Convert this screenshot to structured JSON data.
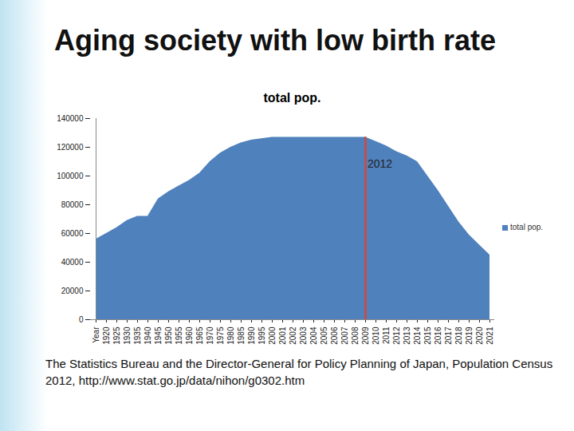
{
  "chart_data": {
    "type": "area",
    "title": "Aging society with low birth rate",
    "subtitle": "total pop.",
    "caption": "The Statistics Bureau and the Director-General for Policy Planning of Japan, Population Census 2012, http://www.stat.go.jp/data/nihon/g0302.htm",
    "categories": [
      "Year",
      "1920",
      "1925",
      "1930",
      "1935",
      "1940",
      "1945",
      "1950",
      "1955",
      "1960",
      "1965",
      "1970",
      "1975",
      "1980",
      "1985",
      "1990",
      "1995",
      "2000",
      "2001",
      "2002",
      "2003",
      "2004",
      "2005",
      "2006",
      "2007",
      "2008",
      "2009",
      "2010",
      "2011",
      "2012",
      "2013",
      "2014",
      "2015",
      "2016",
      "2017",
      "2018",
      "2019",
      "2020",
      "2021"
    ],
    "series": [
      {
        "name": "total pop.",
        "color": "#4f81bd",
        "values": [
          56000,
          60000,
          64000,
          69000,
          72000,
          72000,
          84000,
          89000,
          93000,
          97000,
          102000,
          110000,
          116000,
          120000,
          123000,
          125000,
          126000,
          127000,
          127000,
          127000,
          127000,
          127000,
          127000,
          127000,
          127000,
          127000,
          127000,
          124000,
          121000,
          117000,
          114000,
          110000,
          100000,
          90000,
          79000,
          68000,
          59000,
          52000,
          45000
        ]
      }
    ],
    "ylim": [
      0,
      140000
    ],
    "yticks": [
      0,
      20000,
      40000,
      60000,
      80000,
      100000,
      120000,
      140000
    ],
    "grid": false,
    "legend": "right",
    "annotations": [
      {
        "text": "2012",
        "x": "2009",
        "color": "#c0504d"
      }
    ]
  }
}
